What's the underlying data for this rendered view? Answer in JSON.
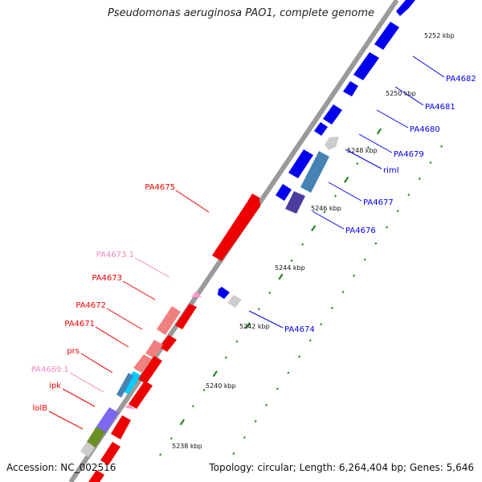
{
  "title": "Pseudomonas aeruginosa PAO1, complete genome",
  "footer": {
    "accession": "Accession: NC_002516",
    "summary": "Topology: circular; Length: 6,264,404 bp; Genes: 5,646"
  },
  "colors": {
    "forward_strand": "#0000ee",
    "reverse_strand": "#ee0000",
    "pseudo_label": "#ee88bb",
    "tick": "#228822"
  },
  "position_ticks": [
    "5238 kbp",
    "5240 kbp",
    "5242 kbp",
    "5244 kbp",
    "5246 kbp",
    "5248 kbp",
    "5250 kbp",
    "5252 kbp"
  ],
  "gene_labels_forward": [
    "PA4682",
    "PA4681",
    "PA4680",
    "PA4679",
    "rimI",
    "PA4677",
    "PA4676",
    "PA4674"
  ],
  "gene_labels_reverse": [
    "PA4675",
    "PA4673.1",
    "PA4673",
    "PA4672",
    "PA4671",
    "prs",
    "PA4669.1",
    "ipk",
    "lolB"
  ]
}
